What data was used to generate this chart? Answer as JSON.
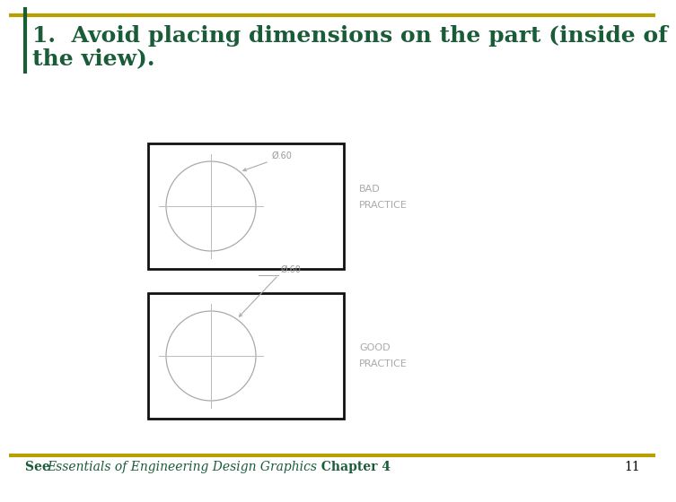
{
  "bg_color": "#ffffff",
  "title_line1": "1.  Avoid placing dimensions on the part (inside of",
  "title_line2": "the view).",
  "title_color": "#1a5c38",
  "title_fontsize": 18,
  "border_color": "#b8a000",
  "bad_label": "BAD\nPRACTICE",
  "good_label": "GOOD\nPRACTICE",
  "label_color": "#aaaaaa",
  "label_fontsize": 8,
  "dim_text": "Ø.60",
  "dim_color": "#999999",
  "dim_fontsize": 7,
  "circle_color": "#aaaaaa",
  "crosshair_color": "#bbbbbb",
  "box_edge_color": "#111111",
  "leader_color": "#aaaaaa",
  "footer_color": "#1a5c38",
  "footer_fontsize": 10,
  "page_number": "11",
  "page_number_color": "#000000",
  "page_number_fontsize": 10
}
